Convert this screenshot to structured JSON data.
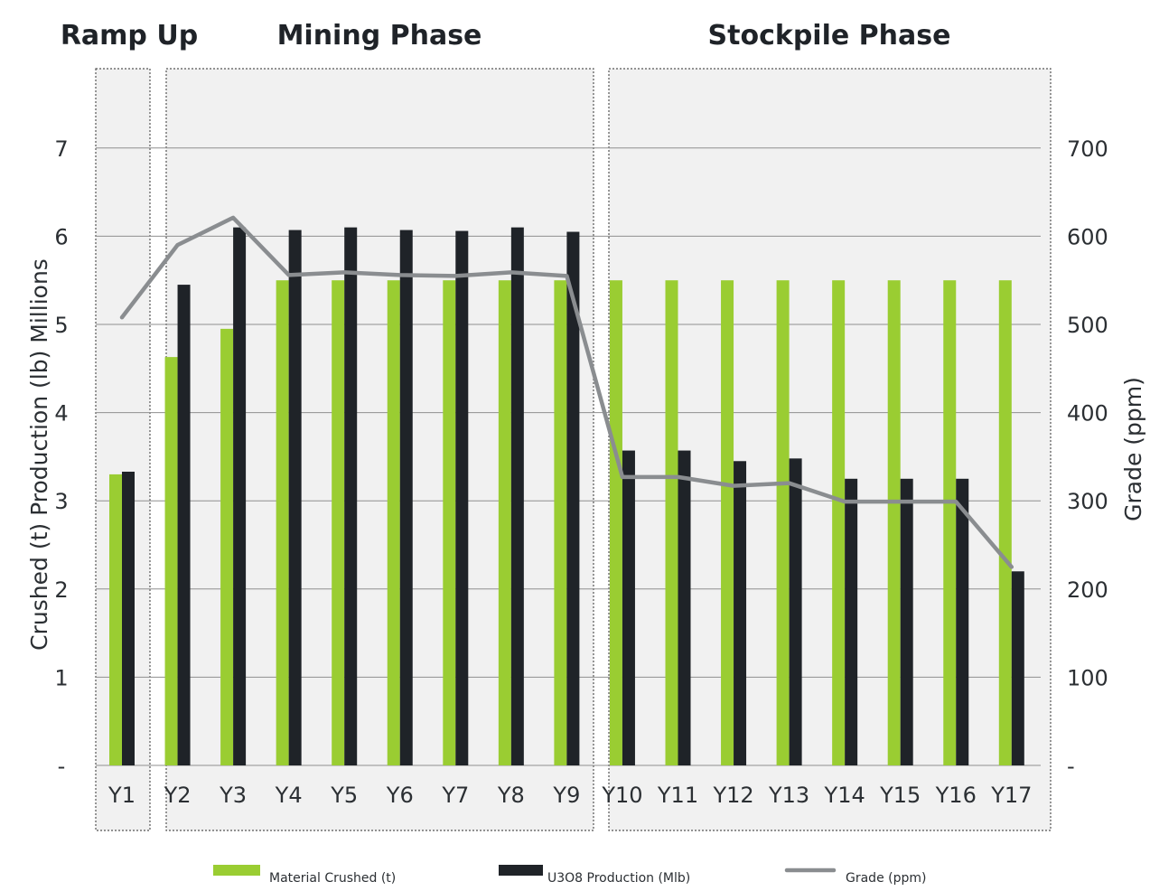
{
  "chart_data": {
    "type": "bar",
    "phases": [
      {
        "name": "Ramp Up",
        "years": [
          "Y1"
        ]
      },
      {
        "name": "Mining Phase",
        "years": [
          "Y2",
          "Y3",
          "Y4",
          "Y5",
          "Y6",
          "Y7",
          "Y8",
          "Y9"
        ]
      },
      {
        "name": "Stockpile Phase",
        "years": [
          "Y10",
          "Y11",
          "Y12",
          "Y13",
          "Y14",
          "Y15",
          "Y16",
          "Y17"
        ]
      }
    ],
    "categories": [
      "Y1",
      "Y2",
      "Y3",
      "Y4",
      "Y5",
      "Y6",
      "Y7",
      "Y8",
      "Y9",
      "Y10",
      "Y11",
      "Y12",
      "Y13",
      "Y14",
      "Y15",
      "Y16",
      "Y17"
    ],
    "series": [
      {
        "name": "Material Crushed (t)",
        "type": "bar",
        "axis": "left",
        "color": "#9acd32",
        "values": [
          3.3,
          4.63,
          4.95,
          5.5,
          5.5,
          5.5,
          5.5,
          5.5,
          5.5,
          5.5,
          5.5,
          5.5,
          5.5,
          5.5,
          5.5,
          5.5,
          5.5
        ]
      },
      {
        "name": "U3O8 Production (Mlb)",
        "type": "bar",
        "axis": "left",
        "color": "#1f2328",
        "values": [
          3.33,
          5.45,
          6.1,
          6.07,
          6.1,
          6.07,
          6.06,
          6.1,
          6.05,
          3.57,
          3.57,
          3.45,
          3.48,
          3.25,
          3.25,
          3.25,
          2.2
        ]
      },
      {
        "name": "Grade (ppm)",
        "type": "line",
        "axis": "right",
        "color": "#8a8d90",
        "values": [
          508,
          590,
          621,
          556,
          559,
          556,
          555,
          559,
          555,
          327,
          327,
          317,
          320,
          299,
          299,
          299,
          225
        ]
      }
    ],
    "ylabel": "Crushed (t) Production (lb) Millions",
    "y2label": "Grade (ppm)",
    "ylim": [
      0,
      7.8
    ],
    "y2lim": [
      0,
      780
    ],
    "yticks": [
      "-",
      "1",
      "2",
      "3",
      "4",
      "5",
      "6",
      "7"
    ],
    "y2ticks": [
      "-",
      "100",
      "200",
      "300",
      "400",
      "500",
      "600",
      "700"
    ],
    "grid": true,
    "legend_position": "bottom"
  }
}
